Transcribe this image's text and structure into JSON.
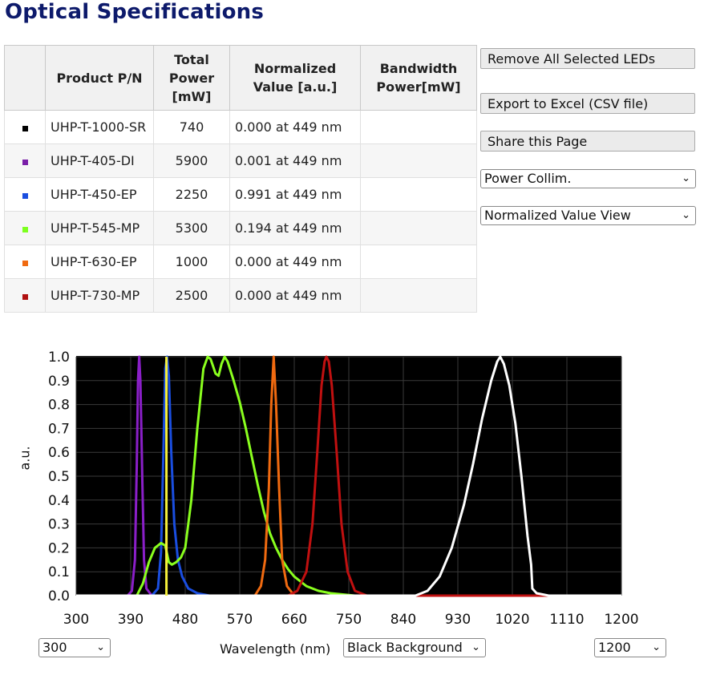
{
  "page_title": "Optical Specifications",
  "table": {
    "headers": [
      "",
      "Product P/N",
      "Total Power [mW]",
      "Normalized Value [a.u.]",
      "Bandwidth Power[mW]"
    ],
    "rows": [
      {
        "color": "#000000",
        "pn": "UHP-T-1000-SR",
        "power": "740",
        "norm": "0.000 at 449 nm",
        "bw": ""
      },
      {
        "color": "#7a1fa8",
        "pn": "UHP-T-405-DI",
        "power": "5900",
        "norm": "0.001 at 449 nm",
        "bw": ""
      },
      {
        "color": "#1a4ee0",
        "pn": "UHP-T-450-EP",
        "power": "2250",
        "norm": "0.991 at 449 nm",
        "bw": ""
      },
      {
        "color": "#7dff1e",
        "pn": "UHP-T-545-MP",
        "power": "5300",
        "norm": "0.194 at 449 nm",
        "bw": ""
      },
      {
        "color": "#f06a10",
        "pn": "UHP-T-630-EP",
        "power": "1000",
        "norm": "0.000 at 449 nm",
        "bw": ""
      },
      {
        "color": "#b01010",
        "pn": "UHP-T-730-MP",
        "power": "2500",
        "norm": "0.000 at 449 nm",
        "bw": ""
      }
    ]
  },
  "buttons": {
    "remove_all": "Remove All Selected LEDs",
    "export": "Export to Excel (CSV file)",
    "share": "Share this Page"
  },
  "selects": {
    "collimation": "Power Collim.",
    "view": "Normalized Value View",
    "x_min": "300",
    "background": "Black Background",
    "x_max": "1200"
  },
  "chart_data": {
    "type": "line",
    "title": "",
    "xlabel": "Wavelength (nm)",
    "ylabel": "a.u.",
    "xlim": [
      300,
      1200
    ],
    "ylim": [
      0,
      1.0
    ],
    "x_ticks": [
      300,
      390,
      480,
      570,
      660,
      750,
      840,
      930,
      1020,
      1110,
      1200
    ],
    "y_ticks": [
      0.0,
      0.1,
      0.2,
      0.3,
      0.4,
      0.5,
      0.6,
      0.7,
      0.8,
      0.9,
      1.0
    ],
    "grid": true,
    "background": "#000000",
    "marker_line": {
      "x": 449,
      "color": "#f5f03a"
    },
    "series": [
      {
        "name": "UHP-T-405-DI",
        "color": "#8a1fc8",
        "points": [
          [
            300,
            0
          ],
          [
            385,
            0
          ],
          [
            392,
            0.02
          ],
          [
            397,
            0.15
          ],
          [
            400,
            0.55
          ],
          [
            402,
            0.9
          ],
          [
            404,
            1.0
          ],
          [
            406,
            0.9
          ],
          [
            409,
            0.5
          ],
          [
            412,
            0.15
          ],
          [
            416,
            0.03
          ],
          [
            425,
            0
          ],
          [
            1200,
            0
          ]
        ]
      },
      {
        "name": "UHP-T-450-EP",
        "color": "#1a4ee0",
        "points": [
          [
            300,
            0
          ],
          [
            425,
            0
          ],
          [
            435,
            0.03
          ],
          [
            440,
            0.18
          ],
          [
            444,
            0.6
          ],
          [
            447,
            0.95
          ],
          [
            450,
            1.0
          ],
          [
            453,
            0.92
          ],
          [
            457,
            0.6
          ],
          [
            462,
            0.3
          ],
          [
            468,
            0.15
          ],
          [
            475,
            0.08
          ],
          [
            485,
            0.03
          ],
          [
            500,
            0.01
          ],
          [
            520,
            0
          ],
          [
            1200,
            0
          ]
        ]
      },
      {
        "name": "UHP-T-545-MP",
        "color": "#8aff1e",
        "points": [
          [
            300,
            0
          ],
          [
            400,
            0
          ],
          [
            410,
            0.05
          ],
          [
            420,
            0.14
          ],
          [
            430,
            0.2
          ],
          [
            440,
            0.22
          ],
          [
            447,
            0.21
          ],
          [
            453,
            0.14
          ],
          [
            458,
            0.13
          ],
          [
            465,
            0.14
          ],
          [
            473,
            0.16
          ],
          [
            480,
            0.2
          ],
          [
            490,
            0.4
          ],
          [
            500,
            0.7
          ],
          [
            510,
            0.95
          ],
          [
            517,
            1.0
          ],
          [
            522,
            0.99
          ],
          [
            530,
            0.93
          ],
          [
            535,
            0.92
          ],
          [
            540,
            0.97
          ],
          [
            545,
            1.0
          ],
          [
            550,
            0.98
          ],
          [
            560,
            0.9
          ],
          [
            570,
            0.81
          ],
          [
            580,
            0.7
          ],
          [
            590,
            0.58
          ],
          [
            600,
            0.46
          ],
          [
            610,
            0.35
          ],
          [
            620,
            0.26
          ],
          [
            630,
            0.2
          ],
          [
            640,
            0.15
          ],
          [
            650,
            0.11
          ],
          [
            660,
            0.08
          ],
          [
            680,
            0.04
          ],
          [
            700,
            0.02
          ],
          [
            720,
            0.01
          ],
          [
            760,
            0
          ],
          [
            1200,
            0
          ]
        ]
      },
      {
        "name": "UHP-T-630-EP",
        "color": "#f06a10",
        "points": [
          [
            300,
            0
          ],
          [
            595,
            0
          ],
          [
            605,
            0.04
          ],
          [
            612,
            0.15
          ],
          [
            618,
            0.45
          ],
          [
            622,
            0.8
          ],
          [
            626,
            1.0
          ],
          [
            630,
            0.8
          ],
          [
            635,
            0.45
          ],
          [
            640,
            0.15
          ],
          [
            648,
            0.04
          ],
          [
            660,
            0
          ],
          [
            1200,
            0
          ]
        ]
      },
      {
        "name": "UHP-T-730-MP",
        "color": "#c01010",
        "points": [
          [
            300,
            0
          ],
          [
            650,
            0
          ],
          [
            665,
            0.02
          ],
          [
            680,
            0.1
          ],
          [
            690,
            0.3
          ],
          [
            698,
            0.6
          ],
          [
            705,
            0.88
          ],
          [
            710,
            0.98
          ],
          [
            713,
            1.0
          ],
          [
            717,
            0.98
          ],
          [
            722,
            0.88
          ],
          [
            730,
            0.6
          ],
          [
            738,
            0.3
          ],
          [
            748,
            0.1
          ],
          [
            760,
            0.02
          ],
          [
            780,
            0
          ],
          [
            1200,
            0
          ]
        ]
      },
      {
        "name": "UHP-T-1000-SR",
        "color": "#ffffff",
        "points": [
          [
            300,
            0
          ],
          [
            860,
            0
          ],
          [
            880,
            0.02
          ],
          [
            900,
            0.08
          ],
          [
            920,
            0.2
          ],
          [
            940,
            0.38
          ],
          [
            955,
            0.55
          ],
          [
            970,
            0.74
          ],
          [
            985,
            0.9
          ],
          [
            995,
            0.98
          ],
          [
            1000,
            1.0
          ],
          [
            1006,
            0.97
          ],
          [
            1015,
            0.88
          ],
          [
            1025,
            0.72
          ],
          [
            1035,
            0.5
          ],
          [
            1045,
            0.25
          ],
          [
            1051,
            0.13
          ],
          [
            1053,
            0.03
          ],
          [
            1060,
            0.01
          ],
          [
            1080,
            0
          ],
          [
            1200,
            0
          ]
        ]
      }
    ]
  }
}
